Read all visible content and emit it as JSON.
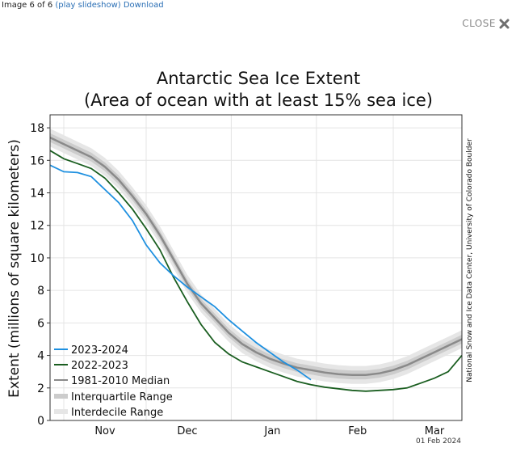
{
  "header": {
    "counter": "Image 6 of 6",
    "slideshow_link": "(play slideshow)",
    "download_link": "Download",
    "close_label": "CLOSE"
  },
  "chart_data": {
    "type": "line",
    "title": "Antarctic Sea Ice Extent",
    "subtitle": "(Area of ocean with at least 15% sea ice)",
    "ylabel": "Extent (millions of square kilometers)",
    "xlabel": "",
    "ylim": [
      0,
      18.8
    ],
    "yticks": [
      0,
      2,
      4,
      6,
      8,
      10,
      12,
      14,
      16,
      18
    ],
    "xlim": [
      0,
      150
    ],
    "x_units": "days since Oct 26",
    "month_ticks": [
      {
        "label": "Nov",
        "x": 20
      },
      {
        "label": "Dec",
        "x": 50
      },
      {
        "label": "Jan",
        "x": 81
      },
      {
        "label": "Feb",
        "x": 112
      },
      {
        "label": "Mar",
        "x": 140
      }
    ],
    "month_boundaries": [
      5,
      35,
      66,
      97,
      125
    ],
    "grid": true,
    "legend_position": "bottom-left",
    "series": [
      {
        "name": "2023-2024",
        "color": "#1e90e0",
        "x": [
          0,
          5,
          10,
          15,
          20,
          25,
          30,
          35,
          40,
          45,
          50,
          55,
          60,
          65,
          70,
          75,
          80,
          85,
          90,
          95
        ],
        "y": [
          15.7,
          15.3,
          15.25,
          15.0,
          14.2,
          13.4,
          12.3,
          10.8,
          9.7,
          8.9,
          8.2,
          7.6,
          7.0,
          6.2,
          5.5,
          4.8,
          4.2,
          3.6,
          3.1,
          2.5
        ]
      },
      {
        "name": "2022-2023",
        "color": "#1a5e20",
        "x": [
          0,
          5,
          10,
          15,
          20,
          25,
          30,
          35,
          40,
          45,
          50,
          55,
          60,
          65,
          70,
          75,
          80,
          85,
          90,
          95,
          100,
          105,
          110,
          115,
          120,
          125,
          130,
          135,
          140,
          145,
          150
        ],
        "y": [
          16.6,
          16.1,
          15.8,
          15.5,
          14.9,
          14.0,
          13.0,
          11.8,
          10.5,
          8.8,
          7.3,
          5.9,
          4.8,
          4.1,
          3.6,
          3.3,
          3.0,
          2.7,
          2.4,
          2.2,
          2.05,
          1.95,
          1.85,
          1.8,
          1.85,
          1.9,
          2.0,
          2.3,
          2.6,
          3.0,
          4.0
        ]
      },
      {
        "name": "1981-2010 Median",
        "color": "#8a8a8a",
        "x": [
          0,
          5,
          10,
          15,
          20,
          25,
          30,
          35,
          40,
          45,
          50,
          55,
          60,
          65,
          70,
          75,
          80,
          85,
          90,
          95,
          100,
          105,
          110,
          115,
          120,
          125,
          130,
          135,
          140,
          145,
          150
        ],
        "y": [
          17.4,
          17.0,
          16.6,
          16.2,
          15.6,
          14.8,
          13.8,
          12.7,
          11.4,
          9.9,
          8.4,
          7.2,
          6.3,
          5.4,
          4.7,
          4.2,
          3.8,
          3.5,
          3.25,
          3.1,
          2.95,
          2.85,
          2.8,
          2.8,
          2.9,
          3.1,
          3.4,
          3.8,
          4.2,
          4.6,
          5.0
        ]
      },
      {
        "name": "Interquartile Range",
        "color": "#cccccc",
        "band": "interquartile"
      },
      {
        "name": "Interdecile Range",
        "color": "#e6e6e6",
        "band": "interdecile"
      }
    ]
  },
  "credit": "National Snow and Ice Data Center, University of Colorado Boulder",
  "date_stamp": "01 Feb 2024"
}
